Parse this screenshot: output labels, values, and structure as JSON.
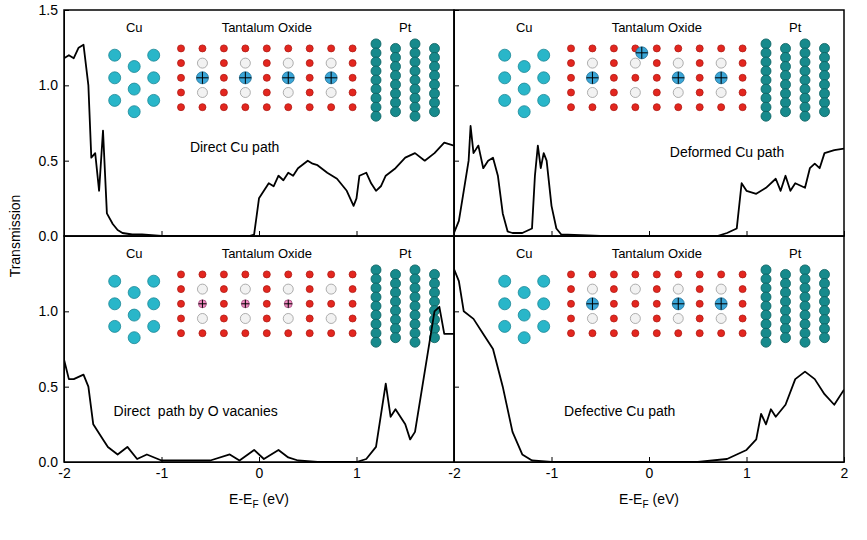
{
  "chart_data": [
    {
      "type": "line",
      "title": "Direct Cu path",
      "labels": [
        "Cu",
        "Tantalum Oxide",
        "Pt"
      ],
      "ylabel": "Transmission",
      "x": [
        -2,
        -1.95,
        -1.9,
        -1.85,
        -1.8,
        -1.75,
        -1.72,
        -1.68,
        -1.64,
        -1.6,
        -1.56,
        -1.5,
        -1.45,
        -1.4,
        -1.3,
        -1.2,
        -1,
        -0.5,
        -0.1,
        -0.05,
        0,
        0.05,
        0.1,
        0.15,
        0.2,
        0.25,
        0.3,
        0.35,
        0.4,
        0.5,
        0.55,
        0.6,
        0.7,
        0.8,
        0.9,
        0.97,
        1.0,
        1.03,
        1.1,
        1.15,
        1.2,
        1.25,
        1.3,
        1.4,
        1.5,
        1.6,
        1.7,
        1.8,
        1.9,
        2
      ],
      "values": [
        1.18,
        1.2,
        1.18,
        1.25,
        1.27,
        1.0,
        0.52,
        0.55,
        0.3,
        0.7,
        0.15,
        0.08,
        0.04,
        0.02,
        0.01,
        0.01,
        0,
        0,
        0,
        0.01,
        0.25,
        0.3,
        0.35,
        0.33,
        0.4,
        0.37,
        0.42,
        0.4,
        0.45,
        0.5,
        0.48,
        0.47,
        0.42,
        0.38,
        0.3,
        0.2,
        0.25,
        0.4,
        0.42,
        0.35,
        0.3,
        0.33,
        0.4,
        0.45,
        0.52,
        0.55,
        0.5,
        0.55,
        0.62,
        0.6
      ],
      "color": "#000000",
      "xlim": [
        -2,
        2
      ],
      "ylim": [
        0,
        1.5
      ],
      "xticks": [
        -2,
        -1,
        0,
        1,
        2
      ],
      "yticks": [
        {
          "value": 0,
          "label": "0.0"
        },
        {
          "value": 0.5,
          "label": "0.5"
        },
        {
          "value": 1,
          "label": "1.0"
        },
        {
          "value": 1.5,
          "label": "1.5"
        }
      ],
      "tick_labels": "y"
    },
    {
      "type": "line",
      "title": "Deformed Cu path",
      "labels": [
        "Cu",
        "Tantalum Oxide",
        "Pt"
      ],
      "x": [
        -2,
        -1.95,
        -1.9,
        -1.85,
        -1.83,
        -1.8,
        -1.75,
        -1.7,
        -1.65,
        -1.6,
        -1.55,
        -1.5,
        -1.45,
        -1.4,
        -1.3,
        -1.2,
        -1.17,
        -1.14,
        -1.11,
        -1.08,
        -1.05,
        -1.0,
        -0.95,
        -0.9,
        -0.5,
        0,
        0.5,
        0.7,
        0.8,
        0.9,
        0.95,
        1.0,
        1.1,
        1.2,
        1.3,
        1.35,
        1.4,
        1.45,
        1.5,
        1.6,
        1.65,
        1.7,
        1.75,
        1.8,
        1.9,
        2
      ],
      "values": [
        0.02,
        0.1,
        0.3,
        0.5,
        0.73,
        0.55,
        0.6,
        0.45,
        0.5,
        0.52,
        0.4,
        0.15,
        0.03,
        0.02,
        0.02,
        0.05,
        0.4,
        0.6,
        0.45,
        0.55,
        0.5,
        0.2,
        0.05,
        0.01,
        0,
        0,
        0,
        0,
        0.02,
        0.05,
        0.35,
        0.3,
        0.28,
        0.32,
        0.38,
        0.3,
        0.4,
        0.3,
        0.35,
        0.32,
        0.45,
        0.48,
        0.45,
        0.55,
        0.57,
        0.58
      ],
      "color": "#000000",
      "xlim": [
        -2,
        2
      ],
      "ylim": [
        0,
        1.5
      ],
      "xticks": [
        -2,
        -1,
        0,
        1,
        2
      ],
      "yticks": [
        0,
        0.5,
        1,
        1.5
      ],
      "tick_labels": false
    },
    {
      "type": "line",
      "title": "Direct  path by O vacanies",
      "labels": [
        "Cu",
        "Tantalum Oxide",
        "Pt"
      ],
      "xlabel": {
        "text": "E-E",
        "subscript": "F",
        "unit": "(eV)"
      },
      "x": [
        -2,
        -1.95,
        -1.9,
        -1.8,
        -1.75,
        -1.7,
        -1.6,
        -1.55,
        -1.45,
        -1.35,
        -1.25,
        -1.15,
        -1.0,
        -0.5,
        -0.3,
        -0.2,
        -0.05,
        0.05,
        0.2,
        0.3,
        0.4,
        0.6,
        1.0,
        1.1,
        1.2,
        1.3,
        1.35,
        1.4,
        1.5,
        1.55,
        1.6,
        1.7,
        1.8,
        1.85,
        1.9,
        2
      ],
      "values": [
        0.68,
        0.55,
        0.55,
        0.58,
        0.5,
        0.25,
        0.15,
        0.1,
        0.05,
        0.1,
        0.02,
        0.05,
        0.01,
        0.01,
        0.05,
        0.01,
        0.08,
        0.02,
        0.08,
        0.03,
        0.01,
        0,
        0,
        0.02,
        0.1,
        0.52,
        0.3,
        0.35,
        0.25,
        0.15,
        0.2,
        0.6,
        1.0,
        1.03,
        0.85,
        0.85
      ],
      "color": "#000000",
      "xlim": [
        -2,
        2
      ],
      "ylim": [
        0,
        1.5
      ],
      "xticks": [
        -2,
        -1,
        0,
        1
      ],
      "yticks": [
        {
          "value": 0,
          "label": "0.0"
        },
        {
          "value": 0.5,
          "label": "0.5"
        },
        {
          "value": 1,
          "label": "1.0"
        }
      ]
    },
    {
      "type": "line",
      "title": "Defective Cu path",
      "labels": [
        "Cu",
        "Tantalum Oxide",
        "Pt"
      ],
      "xlabel": {
        "text": "E-E",
        "subscript": "F",
        "unit": "(eV)"
      },
      "x": [
        -2,
        -1.95,
        -1.9,
        -1.8,
        -1.7,
        -1.6,
        -1.5,
        -1.4,
        -1.3,
        -1.2,
        -1.0,
        0,
        0.5,
        0.8,
        1.0,
        1.1,
        1.15,
        1.2,
        1.25,
        1.3,
        1.4,
        1.5,
        1.6,
        1.7,
        1.8,
        1.9,
        2
      ],
      "values": [
        1.28,
        1.2,
        1.0,
        0.95,
        0.85,
        0.75,
        0.5,
        0.2,
        0.05,
        0.01,
        0,
        0,
        0,
        0.02,
        0.08,
        0.15,
        0.32,
        0.25,
        0.35,
        0.3,
        0.38,
        0.55,
        0.6,
        0.55,
        0.45,
        0.38,
        0.48
      ],
      "color": "#000000",
      "xlim": [
        -2,
        2
      ],
      "ylim": [
        0,
        1.5
      ],
      "xticks": [
        -2,
        -1,
        0,
        1,
        2
      ],
      "yticks": [
        0,
        0.5,
        1,
        1.5
      ],
      "tick_labels": "x"
    }
  ]
}
